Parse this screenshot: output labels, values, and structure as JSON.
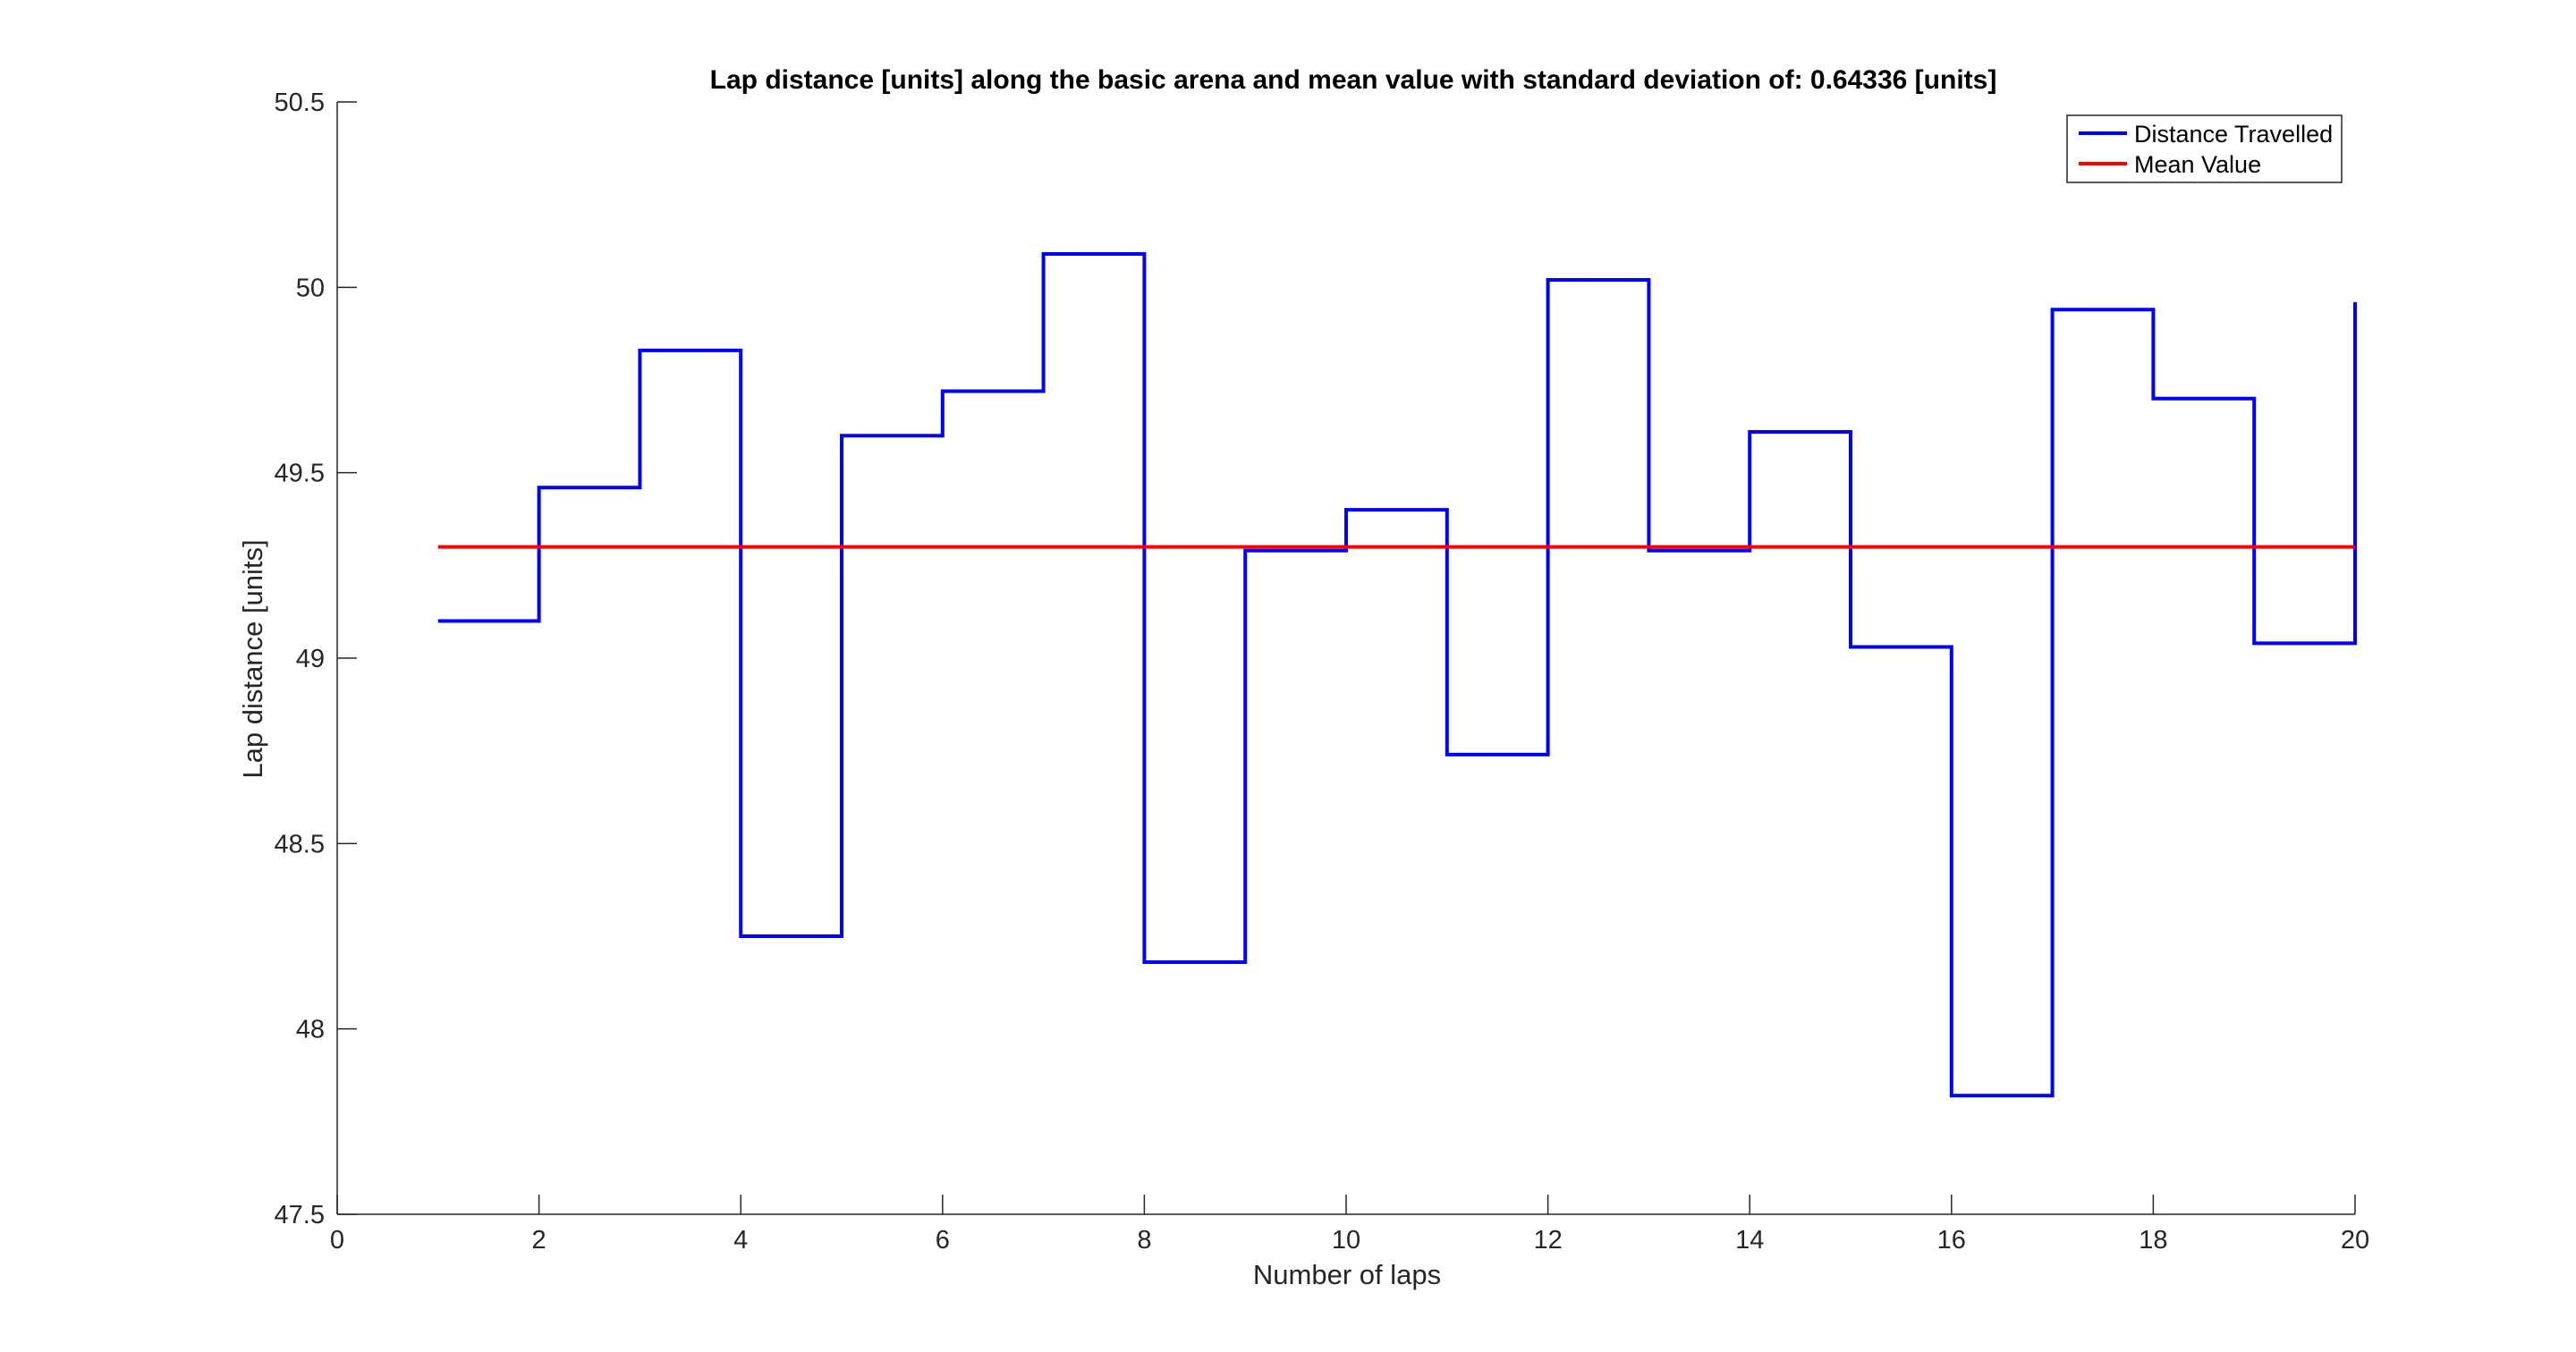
{
  "chart_data": {
    "type": "line",
    "title": "Lap distance [units] along the basic arena and mean value with standard deviation of: 0.64336 [units]",
    "xlabel": "Number of laps",
    "ylabel": "Lap distance [units]",
    "xlim": [
      0,
      20
    ],
    "ylim": [
      47.5,
      50.5
    ],
    "x_ticks": [
      0,
      2,
      4,
      6,
      8,
      10,
      12,
      14,
      16,
      18,
      20
    ],
    "y_ticks": [
      47.5,
      48,
      48.5,
      49,
      49.5,
      50,
      50.5
    ],
    "grid": false,
    "legend_position": "top-right",
    "series": [
      {
        "name": "Distance Travelled",
        "style": "stairs",
        "color": "#0000ff",
        "x": [
          1,
          2,
          3,
          4,
          5,
          6,
          7,
          8,
          9,
          10,
          11,
          12,
          13,
          14,
          15,
          16,
          17,
          18,
          19,
          20
        ],
        "y": [
          49.1,
          49.46,
          49.83,
          48.25,
          49.6,
          49.72,
          50.09,
          48.18,
          49.29,
          49.4,
          48.74,
          50.02,
          49.29,
          49.61,
          49.03,
          47.82,
          49.94,
          49.7,
          49.04,
          49.96
        ]
      },
      {
        "name": "Mean Value",
        "style": "line",
        "color": "#ff0000",
        "x": [
          1,
          20
        ],
        "y": [
          49.3,
          49.3
        ]
      }
    ]
  }
}
